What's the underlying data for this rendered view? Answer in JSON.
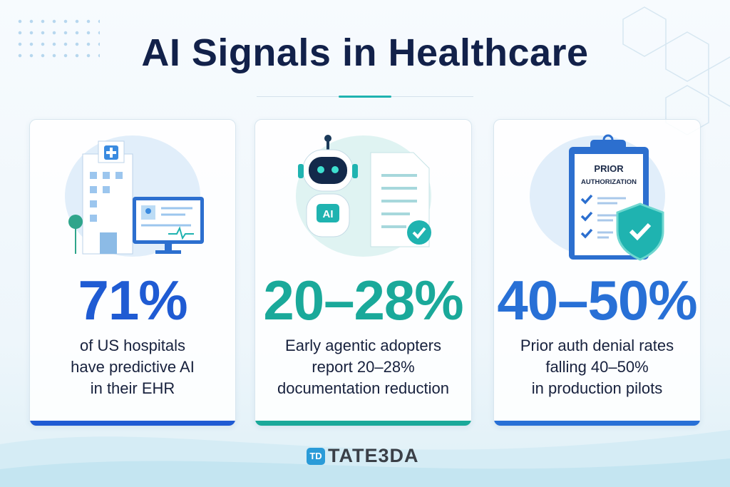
{
  "title": "AI Signals in Healthcare",
  "colors": {
    "navy": "#12214a",
    "blue": "#1f5bd3",
    "teal": "#1aa99a",
    "blue2": "#2870d6"
  },
  "cards": [
    {
      "icon": "hospital-with-ehr-monitor-icon",
      "stat": "71%",
      "lines": [
        "of US hospitals",
        "have predictive AI",
        "in their EHR"
      ],
      "accent": "#1f5bd3"
    },
    {
      "icon": "ai-robot-with-document-icon",
      "icon_label": "AI",
      "stat": "20–28%",
      "lines": [
        "Early agentic adopters",
        "report 20–28%",
        "documentation reduction"
      ],
      "accent": "#1aa99a"
    },
    {
      "icon": "prior-authorization-clipboard-shield-icon",
      "icon_label_1": "PRIOR",
      "icon_label_2": "AUTHORIZATION",
      "stat": "40–50%",
      "lines": [
        "Prior auth denial rates",
        "falling 40–50%",
        "in production pilots"
      ],
      "accent": "#2870d6"
    }
  ],
  "logo": {
    "mark": "TD",
    "text": "TATE3DA"
  }
}
